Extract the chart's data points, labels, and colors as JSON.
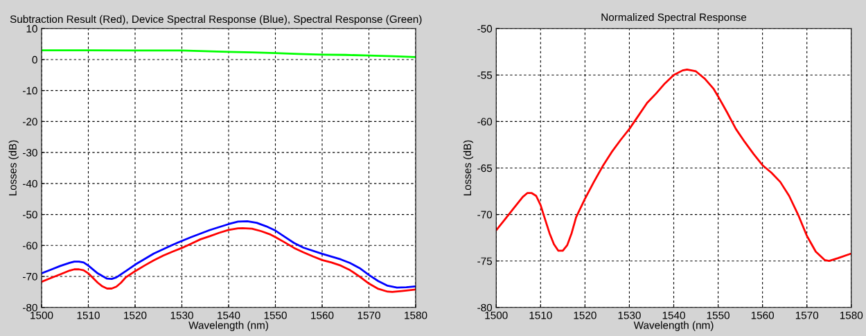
{
  "chart_data": [
    {
      "type": "line",
      "title": "Subtraction Result (Red), Device Spectral Response (Blue), Spectral Response (Green)",
      "xlabel": "Wavelength (nm)",
      "ylabel": "Losses (dB)",
      "xlim": [
        1500,
        1580
      ],
      "xticks": [
        1500,
        1510,
        1520,
        1530,
        1540,
        1550,
        1560,
        1570,
        1580
      ],
      "ylim": [
        -80,
        10
      ],
      "yticks": [
        -80,
        -70,
        -60,
        -50,
        -40,
        -30,
        -20,
        -10,
        0,
        10
      ],
      "grid": true,
      "line_style": "solid",
      "marker": "none",
      "series": [
        {
          "color": "#00ff00",
          "x": [
            1500,
            1510,
            1520,
            1530,
            1535,
            1540,
            1545,
            1550,
            1555,
            1560,
            1565,
            1570,
            1575,
            1580
          ],
          "values": [
            3.0,
            3.0,
            2.9,
            2.9,
            2.7,
            2.5,
            2.3,
            2.1,
            1.8,
            1.6,
            1.5,
            1.3,
            1.1,
            0.8
          ]
        },
        {
          "color": "#0000ff",
          "x": [
            1500,
            1502,
            1504,
            1506,
            1507,
            1508,
            1509,
            1510,
            1512,
            1514,
            1515,
            1516,
            1518,
            1520,
            1524,
            1528,
            1532,
            1536,
            1540,
            1542,
            1544,
            1546,
            1548,
            1550,
            1552,
            1554,
            1556,
            1560,
            1564,
            1566,
            1568,
            1570,
            1572,
            1574,
            1576,
            1578,
            1580
          ],
          "values": [
            -69.0,
            -67.8,
            -66.6,
            -65.6,
            -65.2,
            -65.2,
            -65.5,
            -66.5,
            -69.0,
            -70.7,
            -70.8,
            -70.3,
            -68.3,
            -66.2,
            -62.6,
            -59.8,
            -57.3,
            -55.0,
            -53.1,
            -52.3,
            -52.2,
            -52.7,
            -53.8,
            -55.2,
            -57.2,
            -59.2,
            -60.7,
            -62.7,
            -64.5,
            -65.7,
            -67.3,
            -69.5,
            -71.5,
            -73.0,
            -73.6,
            -73.5,
            -73.2
          ]
        },
        {
          "color": "#ff0000",
          "x": [
            1500,
            1502,
            1504,
            1506,
            1507,
            1508,
            1509,
            1510,
            1511,
            1512,
            1513,
            1514,
            1515,
            1516,
            1517,
            1518,
            1520,
            1522,
            1524,
            1526,
            1528,
            1530,
            1532,
            1534,
            1536,
            1538,
            1540,
            1542,
            1543,
            1545,
            1547,
            1549,
            1550,
            1552,
            1554,
            1556,
            1558,
            1560,
            1562,
            1564,
            1566,
            1568,
            1570,
            1572,
            1574,
            1575,
            1577,
            1580
          ],
          "values": [
            -71.7,
            -70.5,
            -69.3,
            -68.1,
            -67.7,
            -67.7,
            -68.0,
            -69.0,
            -70.5,
            -72.0,
            -73.2,
            -73.9,
            -73.9,
            -73.3,
            -72.0,
            -70.3,
            -68.3,
            -66.5,
            -64.8,
            -63.3,
            -62.0,
            -60.8,
            -59.4,
            -58.0,
            -57.0,
            -55.9,
            -55.0,
            -54.5,
            -54.4,
            -54.6,
            -55.4,
            -56.5,
            -57.3,
            -59.0,
            -60.8,
            -62.2,
            -63.5,
            -64.7,
            -65.5,
            -66.5,
            -68.0,
            -70.0,
            -72.3,
            -74.0,
            -74.9,
            -75.0,
            -74.7,
            -74.2
          ]
        }
      ]
    },
    {
      "type": "line",
      "title": "Normalized Spectral Response",
      "xlabel": "Wavelength (nm)",
      "ylabel": "Losses (dB)",
      "xlim": [
        1500,
        1580
      ],
      "xticks": [
        1500,
        1510,
        1520,
        1530,
        1540,
        1550,
        1560,
        1570,
        1580
      ],
      "ylim": [
        -80,
        -50
      ],
      "yticks": [
        -80,
        -75,
        -70,
        -65,
        -60,
        -55,
        -50
      ],
      "grid": true,
      "line_style": "solid",
      "marker": "none",
      "series": [
        {
          "color": "#ff0000",
          "x": [
            1500,
            1502,
            1504,
            1506,
            1507,
            1508,
            1509,
            1510,
            1511,
            1512,
            1513,
            1514,
            1515,
            1516,
            1517,
            1518,
            1520,
            1522,
            1524,
            1526,
            1528,
            1530,
            1532,
            1534,
            1536,
            1538,
            1540,
            1542,
            1543,
            1545,
            1547,
            1549,
            1550,
            1552,
            1554,
            1556,
            1558,
            1560,
            1562,
            1564,
            1566,
            1568,
            1570,
            1572,
            1574,
            1575,
            1577,
            1580
          ],
          "values": [
            -71.7,
            -70.5,
            -69.3,
            -68.1,
            -67.7,
            -67.7,
            -68.0,
            -69.0,
            -70.5,
            -72.0,
            -73.2,
            -73.9,
            -73.9,
            -73.3,
            -72.0,
            -70.3,
            -68.3,
            -66.5,
            -64.8,
            -63.3,
            -62.0,
            -60.8,
            -59.4,
            -58.0,
            -57.0,
            -55.9,
            -55.0,
            -54.5,
            -54.4,
            -54.6,
            -55.4,
            -56.5,
            -57.3,
            -59.0,
            -60.8,
            -62.2,
            -63.5,
            -64.7,
            -65.5,
            -66.5,
            -68.0,
            -70.0,
            -72.3,
            -74.0,
            -74.9,
            -75.0,
            -74.7,
            -74.2
          ]
        }
      ]
    }
  ]
}
